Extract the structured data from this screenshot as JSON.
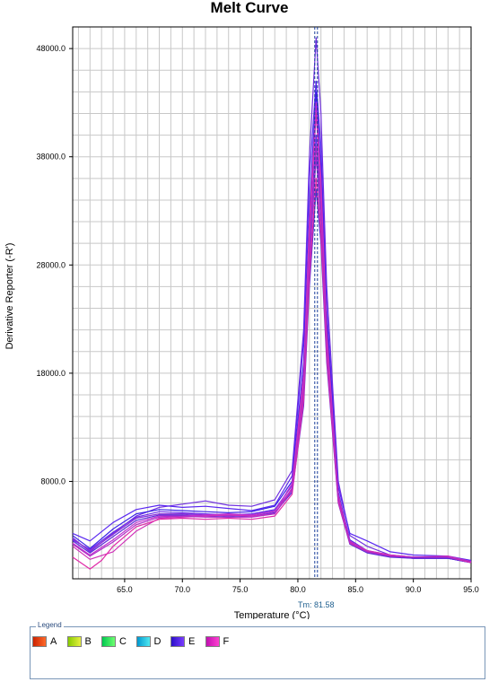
{
  "chart_data": {
    "type": "line",
    "title": "Melt Curve",
    "xlabel": "Temperature (°C)",
    "ylabel": "Derivative Reporter (-R')",
    "xlim": [
      60.5,
      95.0
    ],
    "ylim": [
      -1000,
      50000
    ],
    "x_ticks": [
      65.0,
      70.0,
      75.0,
      80.0,
      85.0,
      90.0,
      95.0
    ],
    "x_tick_labels": [
      "65.0",
      "70.0",
      "75.0",
      "80.0",
      "85.0",
      "90.0",
      "95.0"
    ],
    "y_ticks": [
      8000,
      18000,
      28000,
      38000,
      48000
    ],
    "y_tick_labels": [
      "8000.0",
      "18000.0",
      "28000.0",
      "38000.0",
      "48000.0"
    ],
    "grid": true,
    "tm_label": "Tm: 81.58",
    "tm_value": 81.58,
    "series": [
      {
        "color": "#7030e0",
        "values": [
          [
            60.5,
            2800
          ],
          [
            62.0,
            1500
          ],
          [
            64.0,
            3200
          ],
          [
            66.0,
            4800
          ],
          [
            68.0,
            5600
          ],
          [
            70.0,
            5900
          ],
          [
            72.0,
            6200
          ],
          [
            74.0,
            5800
          ],
          [
            76.0,
            5700
          ],
          [
            78.0,
            6300
          ],
          [
            79.5,
            9000
          ],
          [
            80.5,
            22000
          ],
          [
            81.0,
            38000
          ],
          [
            81.58,
            49000
          ],
          [
            82.0,
            42000
          ],
          [
            82.5,
            26000
          ],
          [
            83.5,
            8000
          ],
          [
            84.5,
            3000
          ],
          [
            86.0,
            2000
          ],
          [
            88.0,
            1200
          ],
          [
            90.0,
            1000
          ],
          [
            93.0,
            1000
          ],
          [
            95.0,
            600
          ]
        ]
      },
      {
        "color": "#5a28f0",
        "values": [
          [
            60.5,
            3200
          ],
          [
            62.0,
            2500
          ],
          [
            64.0,
            4200
          ],
          [
            66.0,
            5400
          ],
          [
            68.0,
            5800
          ],
          [
            70.0,
            5600
          ],
          [
            72.0,
            5700
          ],
          [
            74.0,
            5500
          ],
          [
            76.0,
            5300
          ],
          [
            78.0,
            5800
          ],
          [
            79.5,
            8500
          ],
          [
            80.5,
            21000
          ],
          [
            81.0,
            36000
          ],
          [
            81.58,
            45000
          ],
          [
            82.0,
            39000
          ],
          [
            82.5,
            24000
          ],
          [
            83.5,
            7500
          ],
          [
            84.5,
            3200
          ],
          [
            86.0,
            2500
          ],
          [
            88.0,
            1500
          ],
          [
            90.0,
            1200
          ],
          [
            93.0,
            1100
          ],
          [
            95.0,
            700
          ]
        ]
      },
      {
        "color": "#3a20e8",
        "values": [
          [
            60.5,
            3000
          ],
          [
            62.0,
            1800
          ],
          [
            64.0,
            3600
          ],
          [
            66.0,
            5000
          ],
          [
            68.0,
            5400
          ],
          [
            70.0,
            5300
          ],
          [
            72.0,
            5200
          ],
          [
            74.0,
            5100
          ],
          [
            76.0,
            5200
          ],
          [
            78.0,
            5700
          ],
          [
            79.5,
            8000
          ],
          [
            80.5,
            19000
          ],
          [
            81.0,
            33000
          ],
          [
            81.58,
            44000
          ],
          [
            82.0,
            37000
          ],
          [
            82.5,
            23000
          ],
          [
            83.5,
            7000
          ],
          [
            84.5,
            2600
          ],
          [
            86.0,
            1600
          ],
          [
            88.0,
            1100
          ],
          [
            90.0,
            900
          ],
          [
            93.0,
            900
          ],
          [
            95.0,
            500
          ]
        ]
      },
      {
        "color": "#6a2ce8",
        "values": [
          [
            60.5,
            2600
          ],
          [
            62.0,
            1700
          ],
          [
            64.0,
            3300
          ],
          [
            66.0,
            4700
          ],
          [
            68.0,
            5200
          ],
          [
            70.0,
            5100
          ],
          [
            72.0,
            5000
          ],
          [
            74.0,
            4900
          ],
          [
            76.0,
            5000
          ],
          [
            78.0,
            5400
          ],
          [
            79.5,
            7600
          ],
          [
            80.5,
            17000
          ],
          [
            81.0,
            30000
          ],
          [
            81.58,
            40000
          ],
          [
            82.0,
            34000
          ],
          [
            82.5,
            21000
          ],
          [
            83.5,
            6600
          ],
          [
            84.5,
            2400
          ],
          [
            86.0,
            1500
          ],
          [
            88.0,
            1100
          ],
          [
            90.0,
            900
          ],
          [
            93.0,
            900
          ],
          [
            95.0,
            500
          ]
        ]
      },
      {
        "color": "#8a30d8",
        "values": [
          [
            60.5,
            2700
          ],
          [
            62.0,
            1600
          ],
          [
            64.0,
            3100
          ],
          [
            66.0,
            4600
          ],
          [
            68.0,
            5000
          ],
          [
            70.0,
            5000
          ],
          [
            72.0,
            4900
          ],
          [
            74.0,
            4800
          ],
          [
            76.0,
            4900
          ],
          [
            78.0,
            5300
          ],
          [
            79.5,
            7300
          ],
          [
            80.5,
            16000
          ],
          [
            81.0,
            28000
          ],
          [
            81.58,
            38000
          ],
          [
            82.0,
            32000
          ],
          [
            82.5,
            20000
          ],
          [
            83.5,
            6300
          ],
          [
            84.5,
            2300
          ],
          [
            86.0,
            1500
          ],
          [
            88.0,
            1100
          ],
          [
            90.0,
            900
          ],
          [
            93.0,
            900
          ],
          [
            95.0,
            500
          ]
        ]
      },
      {
        "color": "#5a2ad8",
        "values": [
          [
            60.5,
            2500
          ],
          [
            62.0,
            1400
          ],
          [
            64.0,
            2900
          ],
          [
            66.0,
            4400
          ],
          [
            68.0,
            4900
          ],
          [
            70.0,
            4900
          ],
          [
            72.0,
            4800
          ],
          [
            74.0,
            4700
          ],
          [
            76.0,
            4800
          ],
          [
            78.0,
            5100
          ],
          [
            79.5,
            7000
          ],
          [
            80.5,
            15000
          ],
          [
            81.0,
            26000
          ],
          [
            81.58,
            35000
          ],
          [
            82.0,
            30000
          ],
          [
            82.5,
            19000
          ],
          [
            83.5,
            6000
          ],
          [
            84.5,
            2200
          ],
          [
            86.0,
            1400
          ],
          [
            88.0,
            1000
          ],
          [
            90.0,
            900
          ],
          [
            93.0,
            900
          ],
          [
            95.0,
            500
          ]
        ]
      },
      {
        "color": "#c030d0",
        "values": [
          [
            60.5,
            2300
          ],
          [
            62.0,
            1200
          ],
          [
            64.0,
            2600
          ],
          [
            66.0,
            4200
          ],
          [
            68.0,
            4800
          ],
          [
            70.0,
            4800
          ],
          [
            72.0,
            4900
          ],
          [
            74.0,
            5000
          ],
          [
            76.0,
            4900
          ],
          [
            78.0,
            5200
          ],
          [
            79.5,
            7800
          ],
          [
            80.5,
            18000
          ],
          [
            81.0,
            32000
          ],
          [
            81.58,
            43000
          ],
          [
            82.0,
            36000
          ],
          [
            82.5,
            22000
          ],
          [
            83.5,
            6800
          ],
          [
            84.5,
            2500
          ],
          [
            86.0,
            1600
          ],
          [
            88.0,
            1200
          ],
          [
            90.0,
            1000
          ],
          [
            93.0,
            1000
          ],
          [
            95.0,
            600
          ]
        ]
      },
      {
        "color": "#d030b8",
        "values": [
          [
            60.5,
            2000
          ],
          [
            62.0,
            800
          ],
          [
            64.0,
            1500
          ],
          [
            66.0,
            3400
          ],
          [
            68.0,
            4600
          ],
          [
            70.0,
            4700
          ],
          [
            72.0,
            4800
          ],
          [
            74.0,
            4900
          ],
          [
            76.0,
            4800
          ],
          [
            78.0,
            5000
          ],
          [
            79.5,
            7400
          ],
          [
            80.5,
            17500
          ],
          [
            81.0,
            31000
          ],
          [
            81.58,
            42000
          ],
          [
            82.0,
            35000
          ],
          [
            82.5,
            21500
          ],
          [
            83.5,
            6600
          ],
          [
            84.5,
            2400
          ],
          [
            86.0,
            1600
          ],
          [
            88.0,
            1200
          ],
          [
            90.0,
            1000
          ],
          [
            93.0,
            1100
          ],
          [
            95.0,
            600
          ]
        ]
      },
      {
        "color": "#e02aa8",
        "values": [
          [
            60.5,
            1000
          ],
          [
            62.0,
            -100
          ],
          [
            63.0,
            700
          ],
          [
            64.0,
            2000
          ],
          [
            66.0,
            3800
          ],
          [
            68.0,
            4500
          ],
          [
            70.0,
            4600
          ],
          [
            72.0,
            4500
          ],
          [
            74.0,
            4600
          ],
          [
            76.0,
            4500
          ],
          [
            78.0,
            4800
          ],
          [
            79.5,
            6800
          ],
          [
            80.5,
            15500
          ],
          [
            81.0,
            27000
          ],
          [
            81.58,
            36000
          ],
          [
            82.0,
            31000
          ],
          [
            82.5,
            19500
          ],
          [
            83.5,
            6100
          ],
          [
            84.5,
            2300
          ],
          [
            86.0,
            1500
          ],
          [
            88.0,
            1100
          ],
          [
            90.0,
            1000
          ],
          [
            93.0,
            1000
          ],
          [
            95.0,
            500
          ]
        ]
      },
      {
        "color": "#b02cc8",
        "values": [
          [
            60.5,
            2200
          ],
          [
            62.0,
            1100
          ],
          [
            64.0,
            2400
          ],
          [
            66.0,
            4000
          ],
          [
            68.0,
            4700
          ],
          [
            70.0,
            4800
          ],
          [
            72.0,
            4700
          ],
          [
            74.0,
            4700
          ],
          [
            76.0,
            4700
          ],
          [
            78.0,
            5000
          ],
          [
            79.5,
            7200
          ],
          [
            80.5,
            16500
          ],
          [
            81.0,
            29000
          ],
          [
            81.58,
            39000
          ],
          [
            82.0,
            33000
          ],
          [
            82.5,
            20500
          ],
          [
            83.5,
            6400
          ],
          [
            84.5,
            2400
          ],
          [
            86.0,
            1500
          ],
          [
            88.0,
            1100
          ],
          [
            90.0,
            1000
          ],
          [
            93.0,
            1000
          ],
          [
            95.0,
            600
          ]
        ]
      }
    ]
  },
  "legend": {
    "title": "Legend",
    "items": [
      {
        "label": "A",
        "color_from": "#cc2200",
        "color_to": "#ff6a2a"
      },
      {
        "label": "B",
        "color_from": "#88cc00",
        "color_to": "#e8f040"
      },
      {
        "label": "C",
        "color_from": "#00c850",
        "color_to": "#70ff70"
      },
      {
        "label": "D",
        "color_from": "#0098d0",
        "color_to": "#50e8f0"
      },
      {
        "label": "E",
        "color_from": "#2a10c8",
        "color_to": "#7a3cff"
      },
      {
        "label": "F",
        "color_from": "#c010b0",
        "color_to": "#ff40d0"
      }
    ]
  }
}
